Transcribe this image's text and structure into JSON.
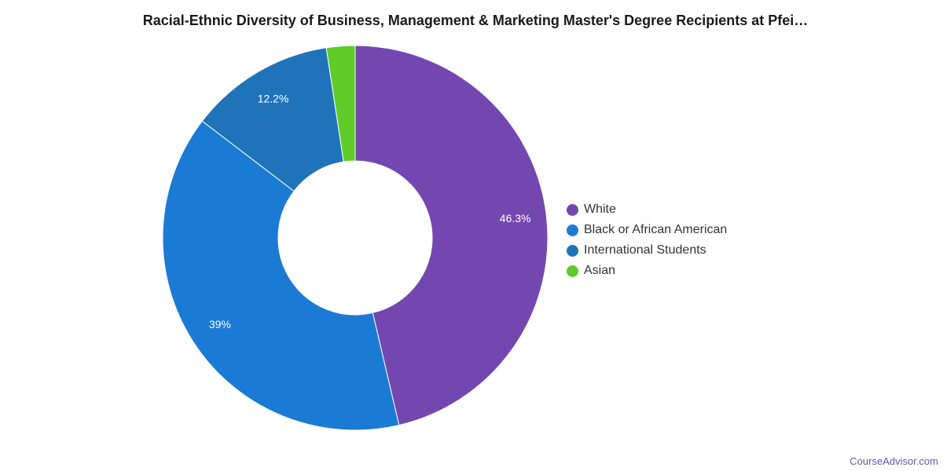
{
  "chart_data": {
    "type": "pie",
    "variant": "donut",
    "title": "Racial-Ethnic Diversity of Business, Management & Marketing Master's Degree Recipients at Pfei…",
    "legend_position": "right",
    "slices": [
      {
        "name": "White",
        "value": 46.3,
        "label": "46.3%",
        "color": "#7447b0"
      },
      {
        "name": "Black or African American",
        "value": 39.0,
        "label": "39%",
        "color": "#1b7bd4"
      },
      {
        "name": "International Students",
        "value": 12.2,
        "label": "12.2%",
        "color": "#1f74b9"
      },
      {
        "name": "Asian",
        "value": 2.4,
        "label": "",
        "color": "#5fcc2a"
      }
    ]
  },
  "watermark": "CourseAdvisor.com"
}
